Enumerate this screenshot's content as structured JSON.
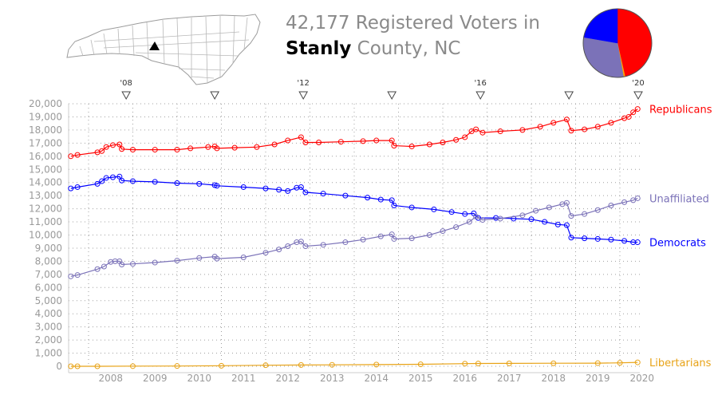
{
  "header": {
    "voter_count": "42,177",
    "title_suffix": "Registered Voters in",
    "county": "Stanly",
    "county_suffix": "County, NC"
  },
  "map": {
    "icon": "north-carolina-county-map",
    "highlight_color": "#000000"
  },
  "pie": {
    "slices": [
      {
        "name": "Republicans",
        "value": 19600,
        "color": "#ff0000"
      },
      {
        "name": "Libertarians",
        "value": 300,
        "color": "#ffa500"
      },
      {
        "name": "Unaffiliated",
        "value": 12900,
        "color": "#7b72b8"
      },
      {
        "name": "Democrats",
        "value": 9400,
        "color": "#0000ff"
      }
    ]
  },
  "chart_data": {
    "type": "line",
    "x_tick_labels": [
      "2008",
      "2009",
      "2010",
      "2011",
      "2012",
      "2013",
      "2014",
      "2015",
      "2016",
      "2017",
      "2018",
      "2019",
      "2020"
    ],
    "xlim": [
      2007.55,
      2020.45
    ],
    "ylim": [
      0,
      20000
    ],
    "y_ticks": [
      0,
      1000,
      2000,
      3000,
      4000,
      5000,
      6000,
      7000,
      8000,
      9000,
      10000,
      11000,
      12000,
      13000,
      14000,
      15000,
      16000,
      17000,
      18000,
      19000,
      20000
    ],
    "y_tick_labels": [
      "0",
      "1,000",
      "2,000",
      "3,000",
      "4,000",
      "5,000",
      "6,000",
      "7,000",
      "8,000",
      "9,000",
      "10,000",
      "11,000",
      "12,000",
      "13,000",
      "14,000",
      "15,000",
      "16,000",
      "17,000",
      "18,000",
      "19,000",
      "20,000"
    ],
    "grid": true,
    "election_markers": [
      {
        "x": 2008.85,
        "label": "'08"
      },
      {
        "x": 2010.85,
        "label": ""
      },
      {
        "x": 2012.85,
        "label": "'12"
      },
      {
        "x": 2014.85,
        "label": ""
      },
      {
        "x": 2016.85,
        "label": "'16"
      },
      {
        "x": 2018.85,
        "label": ""
      },
      {
        "x": 2020.85,
        "label": "'20"
      }
    ],
    "series": [
      {
        "name": "Republicans",
        "color": "#ff0000",
        "points": [
          [
            2007.6,
            16000
          ],
          [
            2007.75,
            16100
          ],
          [
            2008.2,
            16300
          ],
          [
            2008.3,
            16400
          ],
          [
            2008.4,
            16700
          ],
          [
            2008.55,
            16850
          ],
          [
            2008.7,
            16900
          ],
          [
            2008.75,
            16550
          ],
          [
            2009.0,
            16500
          ],
          [
            2009.5,
            16500
          ],
          [
            2010.0,
            16500
          ],
          [
            2010.3,
            16600
          ],
          [
            2010.7,
            16700
          ],
          [
            2010.85,
            16750
          ],
          [
            2010.9,
            16600
          ],
          [
            2011.3,
            16650
          ],
          [
            2011.8,
            16700
          ],
          [
            2012.2,
            16900
          ],
          [
            2012.5,
            17200
          ],
          [
            2012.8,
            17450
          ],
          [
            2012.9,
            17050
          ],
          [
            2013.2,
            17050
          ],
          [
            2013.7,
            17100
          ],
          [
            2014.2,
            17150
          ],
          [
            2014.5,
            17200
          ],
          [
            2014.85,
            17200
          ],
          [
            2014.9,
            16800
          ],
          [
            2015.3,
            16750
          ],
          [
            2015.7,
            16900
          ],
          [
            2016.0,
            17050
          ],
          [
            2016.3,
            17250
          ],
          [
            2016.5,
            17450
          ],
          [
            2016.65,
            17900
          ],
          [
            2016.75,
            18050
          ],
          [
            2016.9,
            17800
          ],
          [
            2017.3,
            17900
          ],
          [
            2017.8,
            18000
          ],
          [
            2018.2,
            18250
          ],
          [
            2018.5,
            18550
          ],
          [
            2018.8,
            18800
          ],
          [
            2018.9,
            17950
          ],
          [
            2019.2,
            18050
          ],
          [
            2019.5,
            18250
          ],
          [
            2019.8,
            18550
          ],
          [
            2020.1,
            18900
          ],
          [
            2020.2,
            19000
          ],
          [
            2020.3,
            19350
          ],
          [
            2020.4,
            19600
          ]
        ]
      },
      {
        "name": "Democrats",
        "color": "#0000ff",
        "points": [
          [
            2007.6,
            13550
          ],
          [
            2007.75,
            13650
          ],
          [
            2008.2,
            13900
          ],
          [
            2008.3,
            14100
          ],
          [
            2008.4,
            14350
          ],
          [
            2008.55,
            14400
          ],
          [
            2008.7,
            14450
          ],
          [
            2008.75,
            14150
          ],
          [
            2009.0,
            14100
          ],
          [
            2009.5,
            14050
          ],
          [
            2010.0,
            13950
          ],
          [
            2010.5,
            13900
          ],
          [
            2010.85,
            13800
          ],
          [
            2010.9,
            13750
          ],
          [
            2011.5,
            13650
          ],
          [
            2012.0,
            13550
          ],
          [
            2012.3,
            13450
          ],
          [
            2012.5,
            13350
          ],
          [
            2012.7,
            13600
          ],
          [
            2012.8,
            13650
          ],
          [
            2012.9,
            13250
          ],
          [
            2013.3,
            13150
          ],
          [
            2013.8,
            13000
          ],
          [
            2014.3,
            12850
          ],
          [
            2014.6,
            12700
          ],
          [
            2014.85,
            12650
          ],
          [
            2014.9,
            12250
          ],
          [
            2015.3,
            12100
          ],
          [
            2015.8,
            11950
          ],
          [
            2016.2,
            11750
          ],
          [
            2016.5,
            11600
          ],
          [
            2016.7,
            11650
          ],
          [
            2016.8,
            11300
          ],
          [
            2017.2,
            11300
          ],
          [
            2017.6,
            11250
          ],
          [
            2018.0,
            11200
          ],
          [
            2018.3,
            11000
          ],
          [
            2018.6,
            10800
          ],
          [
            2018.8,
            10750
          ],
          [
            2018.9,
            9800
          ],
          [
            2019.2,
            9750
          ],
          [
            2019.5,
            9700
          ],
          [
            2019.8,
            9650
          ],
          [
            2020.1,
            9550
          ],
          [
            2020.3,
            9450
          ],
          [
            2020.4,
            9450
          ]
        ]
      },
      {
        "name": "Unaffiliated",
        "color": "#7b72b8",
        "points": [
          [
            2007.6,
            6850
          ],
          [
            2007.75,
            6950
          ],
          [
            2008.2,
            7400
          ],
          [
            2008.35,
            7600
          ],
          [
            2008.5,
            7950
          ],
          [
            2008.6,
            8000
          ],
          [
            2008.7,
            8000
          ],
          [
            2008.75,
            7750
          ],
          [
            2009.0,
            7800
          ],
          [
            2009.5,
            7900
          ],
          [
            2010.0,
            8050
          ],
          [
            2010.5,
            8250
          ],
          [
            2010.85,
            8350
          ],
          [
            2010.9,
            8200
          ],
          [
            2011.5,
            8300
          ],
          [
            2012.0,
            8650
          ],
          [
            2012.3,
            8900
          ],
          [
            2012.5,
            9150
          ],
          [
            2012.7,
            9450
          ],
          [
            2012.8,
            9500
          ],
          [
            2012.9,
            9150
          ],
          [
            2013.3,
            9250
          ],
          [
            2013.8,
            9450
          ],
          [
            2014.2,
            9650
          ],
          [
            2014.6,
            9900
          ],
          [
            2014.85,
            10050
          ],
          [
            2014.9,
            9700
          ],
          [
            2015.3,
            9750
          ],
          [
            2015.7,
            10000
          ],
          [
            2016.0,
            10300
          ],
          [
            2016.3,
            10600
          ],
          [
            2016.6,
            11000
          ],
          [
            2016.75,
            11400
          ],
          [
            2016.9,
            11150
          ],
          [
            2017.3,
            11250
          ],
          [
            2017.8,
            11500
          ],
          [
            2018.1,
            11850
          ],
          [
            2018.4,
            12100
          ],
          [
            2018.7,
            12350
          ],
          [
            2018.8,
            12450
          ],
          [
            2018.9,
            11450
          ],
          [
            2019.2,
            11600
          ],
          [
            2019.5,
            11900
          ],
          [
            2019.8,
            12250
          ],
          [
            2020.1,
            12500
          ],
          [
            2020.3,
            12650
          ],
          [
            2020.4,
            12800
          ]
        ]
      },
      {
        "name": "Libertarians",
        "color": "#e8a317",
        "points": [
          [
            2007.6,
            0
          ],
          [
            2007.75,
            0
          ],
          [
            2008.2,
            0
          ],
          [
            2009.0,
            10
          ],
          [
            2010.0,
            20
          ],
          [
            2011.0,
            40
          ],
          [
            2012.0,
            80
          ],
          [
            2012.8,
            100
          ],
          [
            2013.5,
            110
          ],
          [
            2014.5,
            130
          ],
          [
            2015.5,
            150
          ],
          [
            2016.5,
            200
          ],
          [
            2016.8,
            210
          ],
          [
            2017.5,
            220
          ],
          [
            2018.5,
            230
          ],
          [
            2019.5,
            240
          ],
          [
            2020.0,
            260
          ],
          [
            2020.4,
            300
          ]
        ]
      }
    ]
  }
}
